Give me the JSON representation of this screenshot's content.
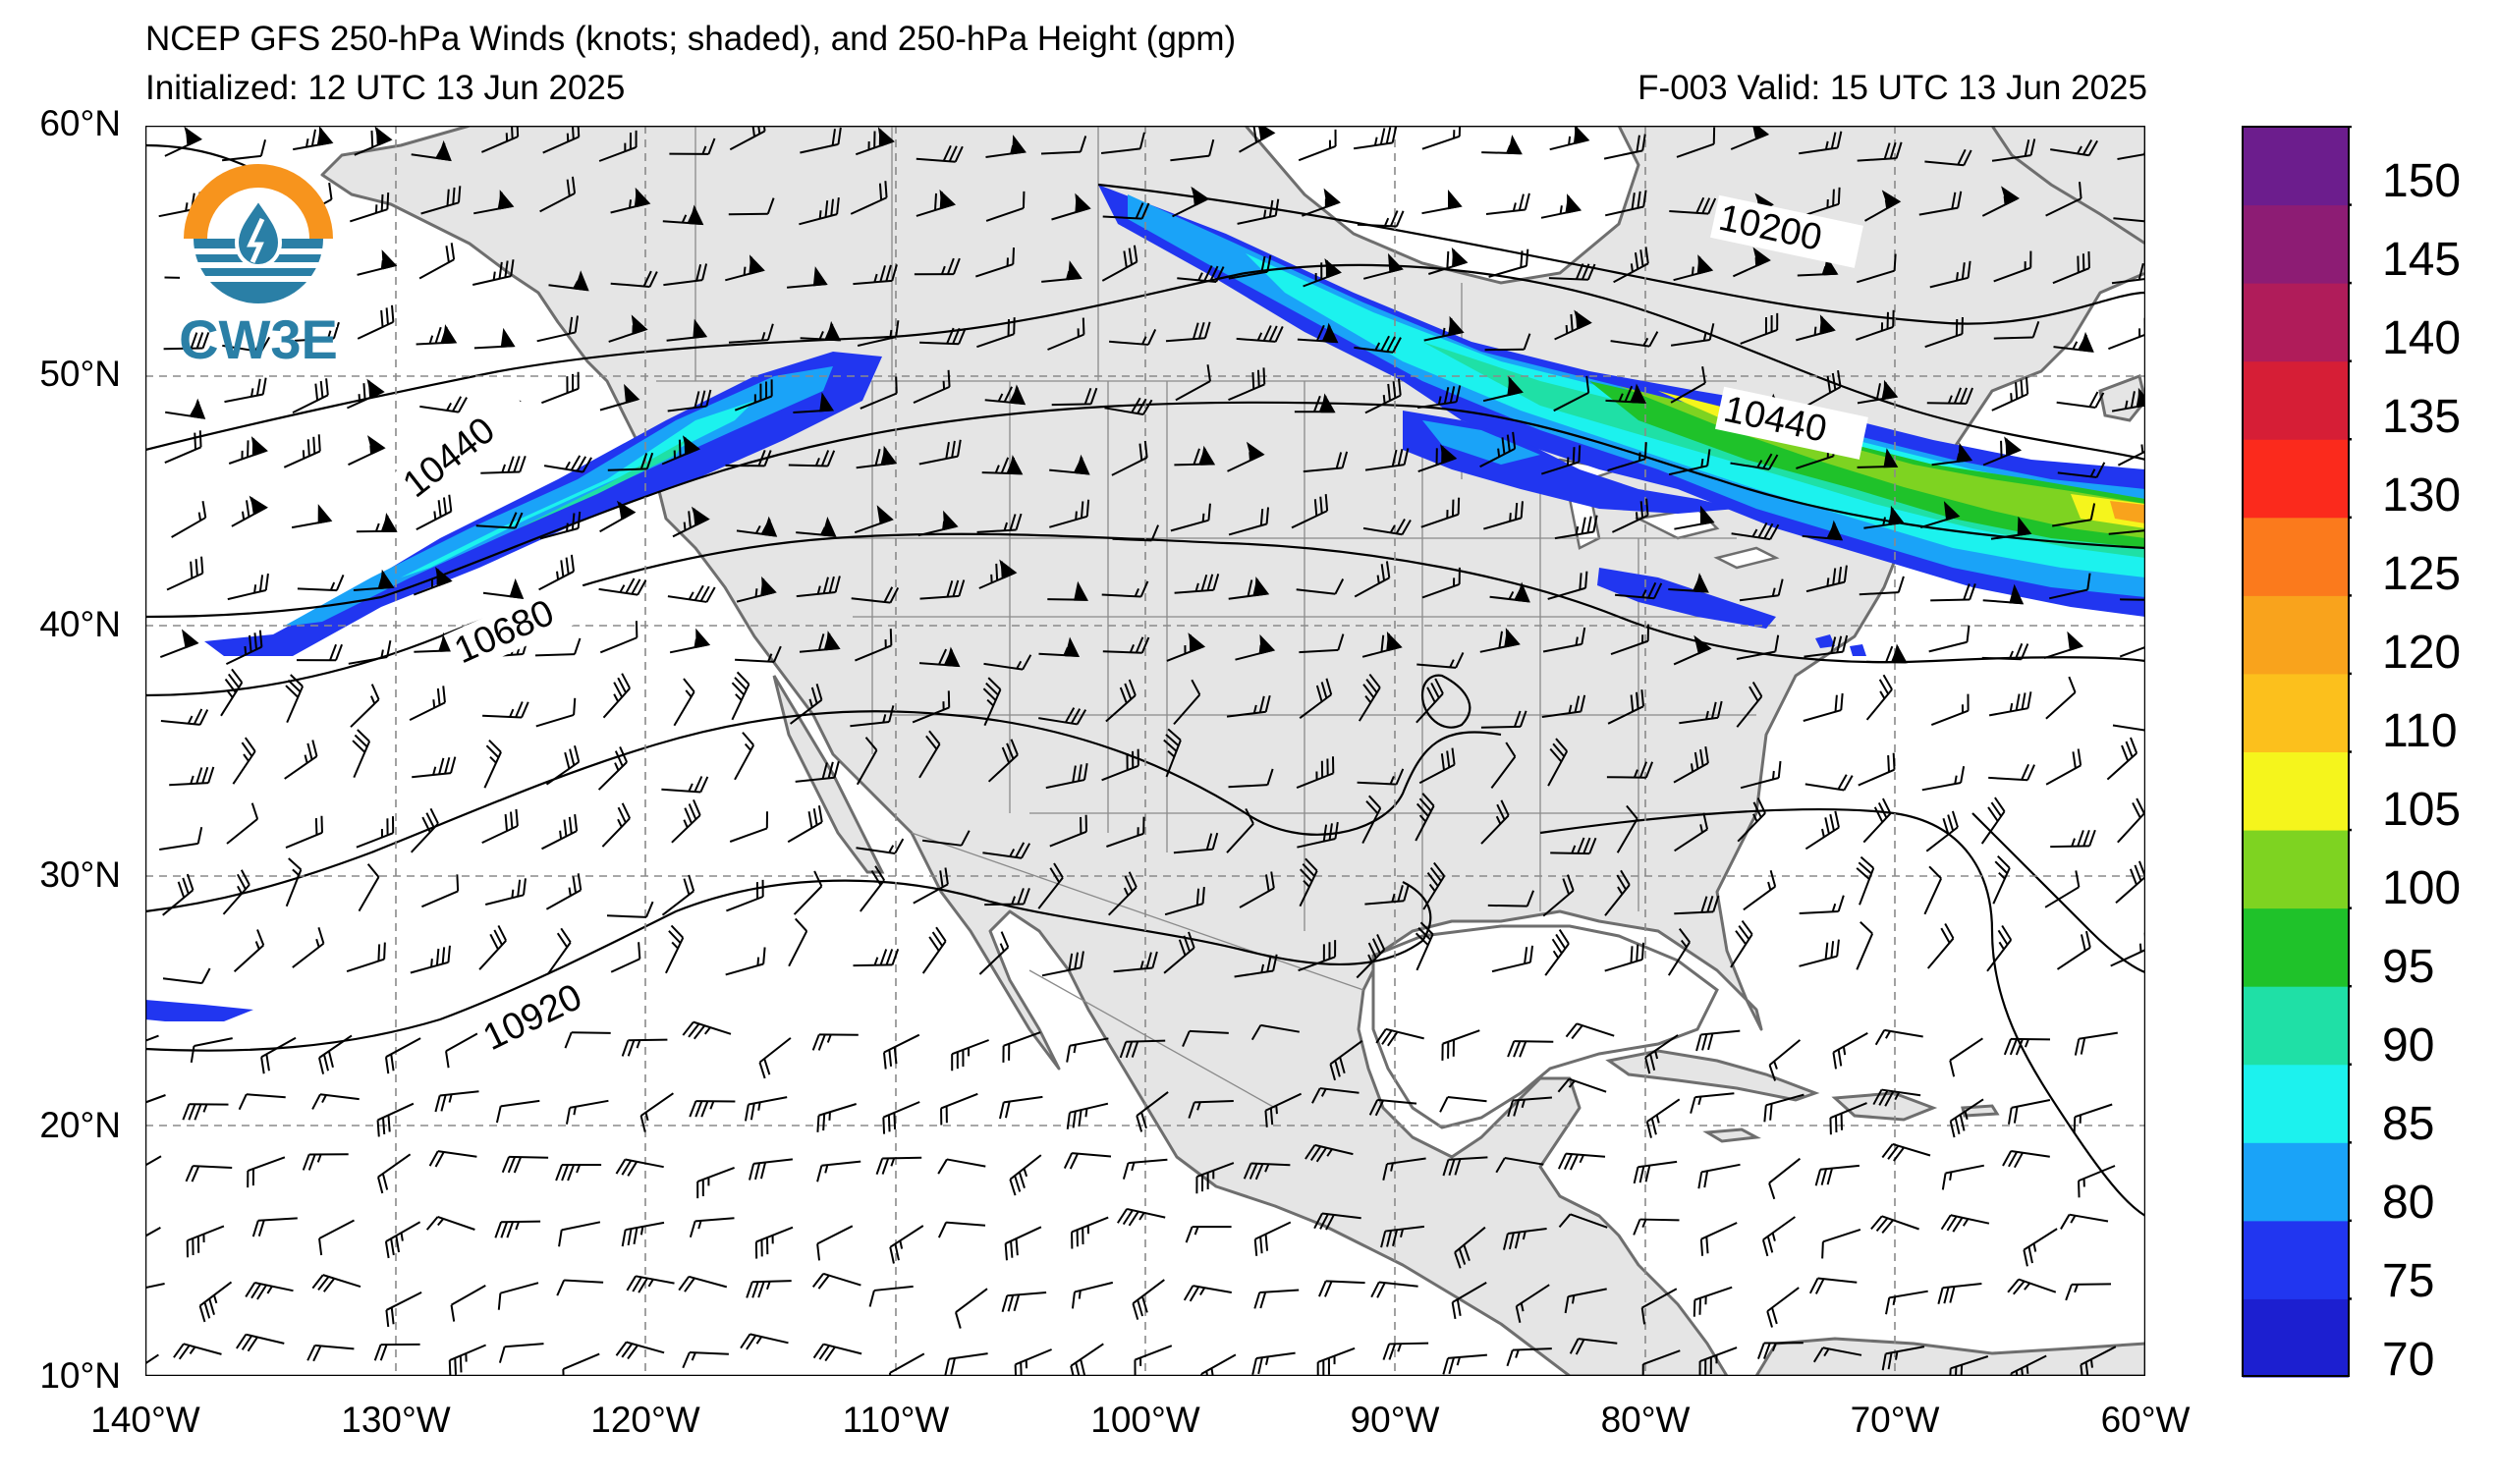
{
  "header": {
    "title": "NCEP GFS 250-hPa Winds (knots; shaded), and 250-hPa Height (gpm)",
    "initialized": "Initialized: 12 UTC 13 Jun 2025",
    "valid": "F-003  Valid: 15 UTC 13 Jun 2025"
  },
  "logo": {
    "text": "CW3E",
    "icon": "cw3e-logo-icon"
  },
  "axes": {
    "lon_labels": [
      "140°W",
      "130°W",
      "120°W",
      "110°W",
      "100°W",
      "90°W",
      "80°W",
      "70°W",
      "60°W"
    ],
    "lat_labels": [
      "60°N",
      "50°N",
      "40°N",
      "30°N",
      "20°N",
      "10°N"
    ]
  },
  "contour_labels": [
    "10200",
    "10440",
    "10440",
    "10680",
    "10920"
  ],
  "colorbar": {
    "labels": [
      "150",
      "145",
      "140",
      "135",
      "130",
      "125",
      "120",
      "110",
      "105",
      "100",
      "95",
      "90",
      "85",
      "80",
      "75",
      "70"
    ],
    "colors": [
      "#1c1fd0",
      "#2136f0",
      "#1aa3f8",
      "#1cf2ee",
      "#1fe0a6",
      "#1fc22a",
      "#7ed321",
      "#f5f51c",
      "#fcc01c",
      "#f9a31c",
      "#fb7a1c",
      "#fb2a1c",
      "#d61e36",
      "#b01c5a",
      "#8d1c74",
      "#6c1d8d"
    ]
  },
  "colors": {
    "land": "#e5e5e5",
    "coast": "#6e6e6e",
    "grid": "#8a8a8a"
  }
}
